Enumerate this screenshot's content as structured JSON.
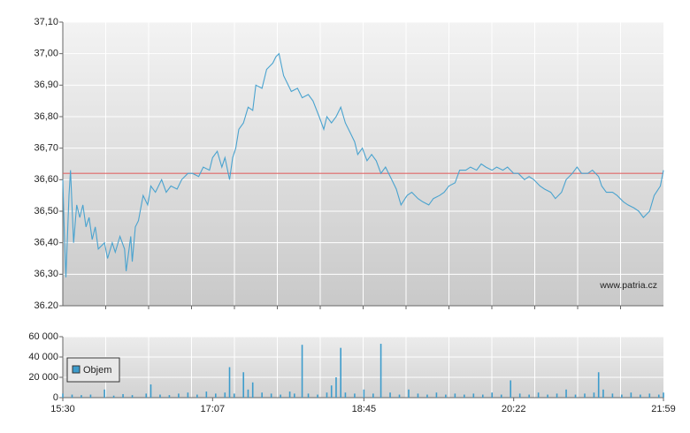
{
  "chart_data": [
    {
      "type": "line",
      "watermark": "www.patria.cz",
      "color": "#4aa3cf",
      "reference_line": 36.62,
      "reference_color": "#e06666",
      "xlim": [
        "15:30",
        "21:59"
      ],
      "ylim": [
        36.2,
        37.1
      ],
      "yticks": [
        {
          "value": 36.2,
          "label": "36.20"
        },
        {
          "value": 36.3,
          "label": "36,30"
        },
        {
          "value": 36.4,
          "label": "36,40"
        },
        {
          "value": 36.5,
          "label": "36,50"
        },
        {
          "value": 36.6,
          "label": "36,60"
        },
        {
          "value": 36.7,
          "label": "36,70"
        },
        {
          "value": 36.8,
          "label": "36,80"
        },
        {
          "value": 36.9,
          "label": "36,90"
        },
        {
          "value": 37.0,
          "label": "37,00"
        },
        {
          "value": 37.1,
          "label": "37,10"
        }
      ],
      "x": [
        "15:30",
        "15:31",
        "15:32",
        "15:34",
        "15:35",
        "15:37",
        "15:39",
        "15:41",
        "15:43",
        "15:45",
        "15:47",
        "15:49",
        "15:51",
        "15:53",
        "15:57",
        "15:59",
        "16:02",
        "16:04",
        "16:07",
        "16:10",
        "16:11",
        "16:14",
        "16:15",
        "16:17",
        "16:19",
        "16:22",
        "16:25",
        "16:27",
        "16:30",
        "16:34",
        "16:37",
        "16:40",
        "16:44",
        "16:47",
        "16:51",
        "16:54",
        "16:58",
        "17:01",
        "17:05",
        "17:07",
        "17:10",
        "17:13",
        "17:15",
        "17:18",
        "17:20",
        "17:22",
        "17:24",
        "17:27",
        "17:30",
        "17:33",
        "17:35",
        "17:39",
        "17:42",
        "17:46",
        "17:48",
        "17:50",
        "17:53",
        "17:56",
        "17:58",
        "18:02",
        "18:05",
        "18:09",
        "18:12",
        "18:16",
        "18:19",
        "18:21",
        "18:24",
        "18:27",
        "18:30",
        "18:33",
        "18:36",
        "18:39",
        "18:41",
        "18:44",
        "18:47",
        "18:50",
        "18:53",
        "18:56",
        "18:59",
        "19:03",
        "19:06",
        "19:09",
        "19:13",
        "19:16",
        "19:20",
        "19:23",
        "19:27",
        "19:30",
        "19:34",
        "19:37",
        "19:40",
        "19:44",
        "19:47",
        "19:51",
        "19:54",
        "19:58",
        "20:01",
        "20:04",
        "20:08",
        "20:11",
        "20:15",
        "20:18",
        "20:22",
        "20:25",
        "20:29",
        "20:32",
        "20:35",
        "20:39",
        "20:42",
        "20:46",
        "20:49",
        "20:53",
        "20:56",
        "21:00",
        "21:03",
        "21:06",
        "21:10",
        "21:13",
        "21:17",
        "21:19",
        "21:22",
        "21:26",
        "21:29",
        "21:33",
        "21:36",
        "21:40",
        "21:43",
        "21:46",
        "21:50",
        "21:53",
        "21:57",
        "21:59"
      ],
      "values": [
        36.6,
        36.43,
        36.29,
        36.55,
        36.63,
        36.4,
        36.52,
        36.48,
        36.52,
        36.45,
        36.48,
        36.41,
        36.45,
        36.38,
        36.4,
        36.35,
        36.4,
        36.37,
        36.42,
        36.38,
        36.31,
        36.42,
        36.34,
        36.45,
        36.47,
        36.55,
        36.52,
        36.58,
        36.56,
        36.6,
        36.56,
        36.58,
        36.57,
        36.6,
        36.62,
        36.62,
        36.61,
        36.64,
        36.63,
        36.67,
        36.69,
        36.64,
        36.67,
        36.6,
        36.67,
        36.7,
        36.76,
        36.78,
        36.83,
        36.82,
        36.9,
        36.89,
        36.95,
        36.97,
        36.99,
        37.0,
        36.93,
        36.9,
        36.88,
        36.89,
        36.86,
        36.87,
        36.85,
        36.8,
        36.76,
        36.8,
        36.78,
        36.8,
        36.83,
        36.78,
        36.75,
        36.72,
        36.68,
        36.7,
        36.66,
        36.68,
        36.66,
        36.62,
        36.64,
        36.6,
        36.57,
        36.52,
        36.55,
        36.56,
        36.54,
        36.53,
        36.52,
        36.54,
        36.55,
        36.56,
        36.58,
        36.59,
        36.63,
        36.63,
        36.64,
        36.63,
        36.65,
        36.64,
        36.63,
        36.64,
        36.63,
        36.64,
        36.62,
        36.62,
        36.6,
        36.61,
        36.6,
        36.58,
        36.57,
        36.56,
        36.54,
        36.56,
        36.6,
        36.62,
        36.64,
        36.62,
        36.62,
        36.63,
        36.61,
        36.58,
        36.56,
        36.56,
        36.55,
        36.53,
        36.52,
        36.51,
        36.5,
        36.48,
        36.5,
        36.55,
        36.58,
        36.63
      ]
    },
    {
      "type": "bar",
      "legend": "Objem",
      "color": "#3d9ccc",
      "xlim": [
        "15:30",
        "21:59"
      ],
      "xticks": [
        "15:30",
        "17:07",
        "18:45",
        "20:22",
        "21:59"
      ],
      "ylim": [
        0,
        60000
      ],
      "yticks": [
        0,
        {
          "value": 20000,
          "label": "20 000"
        },
        {
          "value": 40000,
          "label": "40 000"
        },
        {
          "value": 60000,
          "label": "60 000"
        }
      ],
      "x": [
        "15:30",
        "15:36",
        "15:42",
        "15:48",
        "15:57",
        "16:03",
        "16:09",
        "16:15",
        "16:24",
        "16:27",
        "16:33",
        "16:39",
        "16:45",
        "16:51",
        "16:57",
        "17:03",
        "17:09",
        "17:15",
        "17:18",
        "17:21",
        "17:27",
        "17:30",
        "17:33",
        "17:39",
        "17:45",
        "17:51",
        "17:57",
        "18:00",
        "18:05",
        "18:09",
        "18:15",
        "18:21",
        "18:24",
        "18:27",
        "18:30",
        "18:33",
        "18:39",
        "18:45",
        "18:51",
        "18:56",
        "19:02",
        "19:08",
        "19:14",
        "19:20",
        "19:26",
        "19:32",
        "19:38",
        "19:44",
        "19:50",
        "19:56",
        "20:02",
        "20:08",
        "20:14",
        "20:20",
        "20:26",
        "20:32",
        "20:38",
        "20:44",
        "20:50",
        "20:56",
        "21:02",
        "21:08",
        "21:14",
        "21:17",
        "21:20",
        "21:26",
        "21:32",
        "21:38",
        "21:44",
        "21:50",
        "21:56",
        "21:59"
      ],
      "values": [
        4000,
        3000,
        2500,
        3000,
        8000,
        2000,
        3500,
        2500,
        4000,
        13000,
        3000,
        2500,
        4000,
        5000,
        3000,
        6000,
        4000,
        5000,
        30000,
        4000,
        25000,
        8000,
        15000,
        5000,
        4000,
        3000,
        6000,
        4000,
        52000,
        4000,
        3000,
        5000,
        12000,
        20000,
        49000,
        5000,
        4000,
        8000,
        4000,
        53000,
        5000,
        3000,
        8000,
        4000,
        3000,
        5000,
        3000,
        4000,
        3000,
        4000,
        3000,
        5000,
        3000,
        17000,
        4000,
        3000,
        5000,
        3000,
        4000,
        8000,
        3000,
        4000,
        5000,
        25000,
        8000,
        4000,
        3000,
        5000,
        3000,
        4000,
        3000,
        5000
      ]
    }
  ]
}
